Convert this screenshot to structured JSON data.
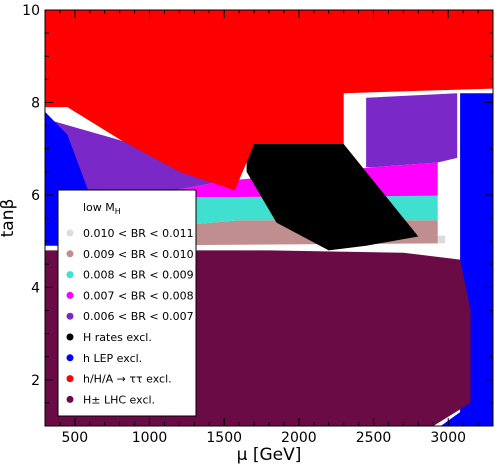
{
  "chart_data": {
    "type": "area",
    "xlabel": "μ [GeV]",
    "ylabel": "tanβ",
    "xlim": [
      300,
      3300
    ],
    "ylim": [
      1,
      10
    ],
    "xticks": [
      500,
      1000,
      1500,
      2000,
      2500,
      3000
    ],
    "yticks": [
      2,
      4,
      6,
      8,
      10
    ],
    "legend_title": "low M",
    "legend_title_sub": "H",
    "legend_placement": "lower-left",
    "regions": [
      {
        "name": "0.010 < BR < 0.011",
        "color": "#dcdcdc",
        "polygon": [
          [
            2700,
            4.95
          ],
          [
            2980,
            4.95
          ],
          [
            2980,
            5.12
          ],
          [
            2700,
            5.12
          ]
        ]
      },
      {
        "name": "0.009 < BR < 0.010",
        "color": "#c08e8e",
        "polygon": [
          [
            1600,
            5.45
          ],
          [
            2930,
            5.45
          ],
          [
            2930,
            4.95
          ],
          [
            600,
            4.9
          ],
          [
            680,
            5.12
          ],
          [
            1000,
            5.28
          ]
        ]
      },
      {
        "name": "0.008 < BR < 0.009",
        "color": "#40e0d0",
        "polygon": [
          [
            1300,
            5.95
          ],
          [
            2930,
            5.98
          ],
          [
            2930,
            5.45
          ],
          [
            1600,
            5.45
          ],
          [
            1000,
            5.28
          ],
          [
            680,
            5.12
          ],
          [
            600,
            5.3
          ]
        ]
      },
      {
        "name": "0.007 < BR < 0.008",
        "color": "#ff00ff",
        "polygon": [
          [
            1500,
            6.3
          ],
          [
            2500,
            6.6
          ],
          [
            2930,
            6.7
          ],
          [
            2930,
            5.98
          ],
          [
            1300,
            5.95
          ],
          [
            600,
            5.3
          ],
          [
            600,
            5.8
          ],
          [
            1000,
            6.0
          ]
        ]
      },
      {
        "name": "0.006 < BR < 0.007",
        "color": "#7b28c8",
        "polygon": [
          [
            350,
            7.6
          ],
          [
            1000,
            7.0
          ],
          [
            1500,
            6.3
          ],
          [
            1000,
            6.0
          ],
          [
            600,
            5.8
          ],
          [
            350,
            6.5
          ]
        ]
      },
      {
        "name": "0.006 < BR < 0.007",
        "color": "#7b28c8",
        "polygon": [
          [
            2500,
            6.6
          ],
          [
            2930,
            6.7
          ],
          [
            3060,
            6.8
          ],
          [
            3060,
            8.2
          ],
          [
            2450,
            8.1
          ],
          [
            2450,
            6.6
          ]
        ]
      },
      {
        "name": "H rates excl.",
        "color": "#000000",
        "polygon": [
          [
            1650,
            7.25
          ],
          [
            2050,
            7.35
          ],
          [
            2250,
            7.3
          ],
          [
            2500,
            6.3
          ],
          [
            2800,
            5.1
          ],
          [
            2450,
            4.9
          ],
          [
            2200,
            4.8
          ],
          [
            1850,
            5.4
          ],
          [
            1650,
            6.5
          ]
        ]
      },
      {
        "name": "h LEP excl.",
        "color": "#0000ff",
        "polygon": [
          [
            300,
            7.8
          ],
          [
            450,
            7.3
          ],
          [
            600,
            6.0
          ],
          [
            650,
            5.0
          ],
          [
            700,
            4.9
          ],
          [
            300,
            4.9
          ]
        ]
      },
      {
        "name": "h LEP excl.",
        "color": "#0000ff",
        "polygon": [
          [
            3080,
            8.2
          ],
          [
            3300,
            8.2
          ],
          [
            3300,
            1.0
          ],
          [
            2950,
            1.0
          ],
          [
            3080,
            1.3
          ],
          [
            3080,
            4.8
          ]
        ]
      },
      {
        "name": "h/H/A → ττ excl.",
        "color": "#ff0000",
        "polygon": [
          [
            300,
            10
          ],
          [
            3300,
            10
          ],
          [
            3300,
            8.3
          ],
          [
            2300,
            8.2
          ],
          [
            2300,
            7.1
          ],
          [
            1700,
            7.1
          ],
          [
            1650,
            6.7
          ],
          [
            1570,
            6.1
          ],
          [
            1200,
            6.5
          ],
          [
            800,
            7.2
          ],
          [
            450,
            7.9
          ],
          [
            300,
            7.9
          ]
        ]
      },
      {
        "name": "H± LHC excl.",
        "color": "#6b0b45",
        "polygon": [
          [
            300,
            4.8
          ],
          [
            1800,
            4.8
          ],
          [
            2700,
            4.75
          ],
          [
            3080,
            4.6
          ],
          [
            3150,
            3.5
          ],
          [
            3150,
            1.5
          ],
          [
            2900,
            1.0
          ],
          [
            300,
            1.0
          ]
        ]
      }
    ],
    "legend": [
      {
        "label": "0.010 < BR < 0.011",
        "color": "#dcdcdc"
      },
      {
        "label": "0.009 < BR < 0.010",
        "color": "#c08e8e"
      },
      {
        "label": "0.008 < BR < 0.009",
        "color": "#40e0d0"
      },
      {
        "label": "0.007 < BR < 0.008",
        "color": "#ff00ff"
      },
      {
        "label": "0.006 < BR < 0.007",
        "color": "#7b28c8"
      },
      {
        "label": "H rates excl.",
        "color": "#000000"
      },
      {
        "label": "h LEP excl.",
        "color": "#0000ff"
      },
      {
        "label": "h/H/A → ττ excl.",
        "color": "#ff0000"
      },
      {
        "label": "H± LHC excl.",
        "color": "#6b0b45"
      }
    ]
  }
}
